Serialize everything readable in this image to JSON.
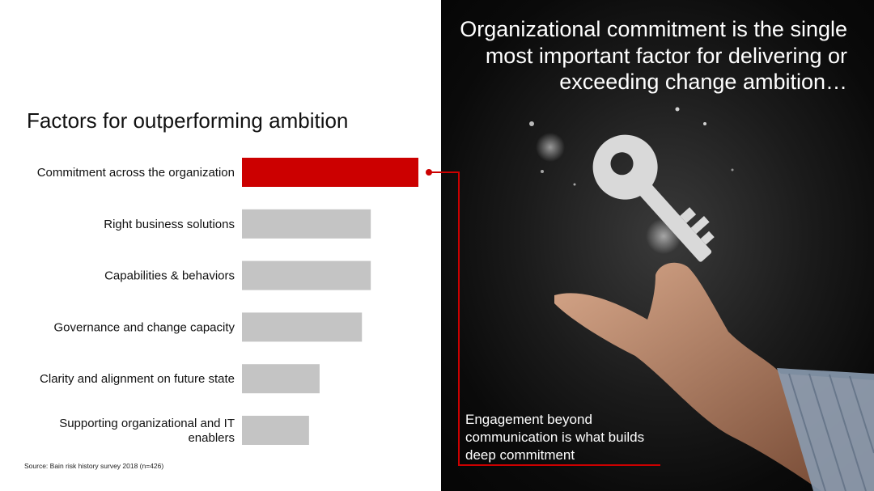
{
  "chart_data": {
    "type": "bar",
    "orientation": "horizontal",
    "title": "Factors for outperforming ambition",
    "categories": [
      "Commitment across the organization",
      "Right business solutions",
      "Capabilities & behaviors",
      "Governance and change capacity",
      "Clarity and alignment on future state",
      "Supporting organizational and IT enablers"
    ],
    "values": [
      100,
      73,
      73,
      68,
      44,
      38
    ],
    "xlim": [
      0,
      100
    ],
    "highlight_index": 0,
    "colors": {
      "highlight": "#cc0000",
      "default": "#c4c4c4"
    },
    "grid": false,
    "legend": "none"
  },
  "source": "Source: Bain risk history survey 2018 (n=426)",
  "headline": "Organizational commitment is the single most important factor for delivering or exceeding change ambition…",
  "callout": "Engagement beyond communication is what builds deep commitment",
  "image": {
    "icon": "key-over-hand-icon"
  },
  "accent_color": "#cc0000"
}
